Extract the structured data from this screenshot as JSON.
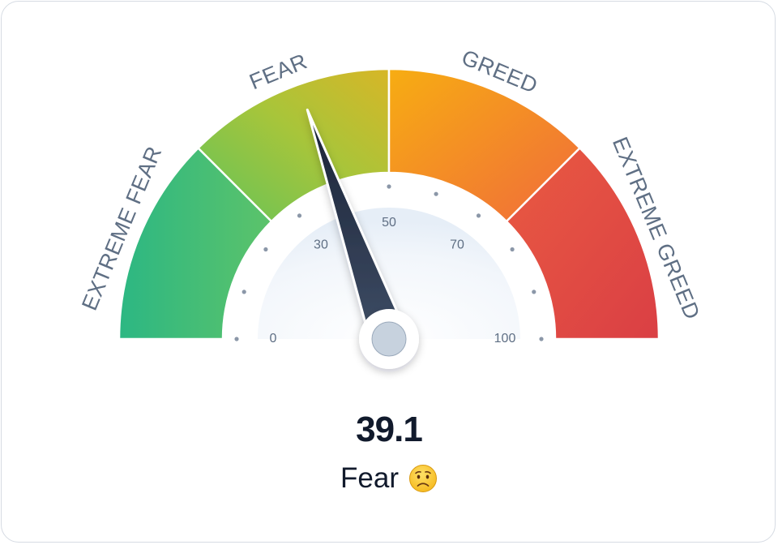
{
  "gauge": {
    "zones": [
      {
        "label": "EXTREME FEAR",
        "color_from": "#2fb87f",
        "color_to": "#56c06a"
      },
      {
        "label": "FEAR",
        "color_from": "#6cc24a",
        "color_to": "#c9c232"
      },
      {
        "label": "GREED",
        "color_from": "#f6b21a",
        "color_to": "#ef6b3a"
      },
      {
        "label": "EXTREME GREED",
        "color_from": "#e6523f",
        "color_to": "#dd4043"
      }
    ],
    "tick_labels": [
      "0",
      "30",
      "50",
      "70",
      "100"
    ],
    "value": 39.1,
    "min": 0,
    "max": 100,
    "needle_color": "#1e293b"
  },
  "readout": {
    "value_text": "39.1",
    "sentiment": "Fear",
    "sentiment_icon": "worried-face-emoji"
  }
}
